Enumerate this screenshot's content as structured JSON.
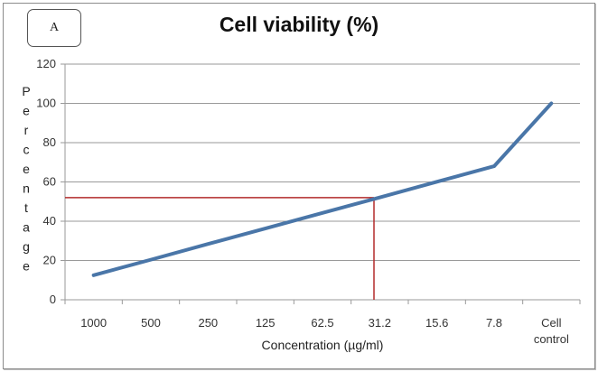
{
  "panel_label": "A",
  "chart_data": {
    "type": "line",
    "title": "Cell viability (%)",
    "xlabel": "Concentration (µg/ml)",
    "ylabel": "Percentage",
    "ylabel_letters": [
      "P",
      "e",
      "r",
      "c",
      "e",
      "n",
      "t",
      "a",
      "g",
      "e"
    ],
    "categories": [
      "1000",
      "500",
      "250",
      "125",
      "62.5",
      "31.2",
      "15.6",
      "7.8",
      "Cell control"
    ],
    "category_lines": [
      [
        "1000"
      ],
      [
        "500"
      ],
      [
        "250"
      ],
      [
        "125"
      ],
      [
        "62.5"
      ],
      [
        "31.2"
      ],
      [
        "15.6"
      ],
      [
        "7.8"
      ],
      [
        "Cell",
        "control"
      ]
    ],
    "series": [
      {
        "name": "Cell viability",
        "color": "#4a76a8",
        "values": [
          12.5,
          20.4,
          28.4,
          36.3,
          44.2,
          52.1,
          60.1,
          68,
          100
        ]
      }
    ],
    "ylim": [
      0,
      120
    ],
    "yticks": [
      0,
      20,
      40,
      60,
      80,
      100,
      120
    ],
    "grid": true,
    "legend": "none",
    "annotations": [
      {
        "type": "reference-lines",
        "description": "IC50 marker at ~52% viability near 31.2 µg/ml",
        "y": 52,
        "x_category_index": 4.9,
        "color": "#b22b2b"
      }
    ]
  }
}
